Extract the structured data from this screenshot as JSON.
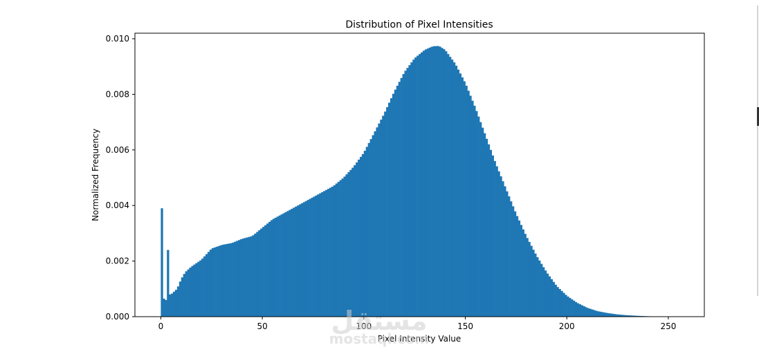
{
  "chart_data": {
    "type": "bar",
    "title": "Distribution of Pixel Intensities",
    "xlabel": "Pixel Intensity Value",
    "ylabel": "Normalized Frequency",
    "xlim": [
      -12.75,
      267.75
    ],
    "ylim": [
      0,
      0.0102
    ],
    "xticks": [
      0,
      50,
      100,
      150,
      200,
      250
    ],
    "xtick_labels": [
      "0",
      "50",
      "100",
      "150",
      "200",
      "250"
    ],
    "yticks": [
      0,
      0.002,
      0.004,
      0.006,
      0.008,
      0.01
    ],
    "ytick_labels": [
      "0.000",
      "0.002",
      "0.004",
      "0.006",
      "0.008",
      "0.010"
    ],
    "bar_color": "#1f77b4",
    "bins": 255,
    "bin_start": 0,
    "bin_width": 1,
    "profile_points": [
      [
        5,
        0.0008
      ],
      [
        8,
        0.001
      ],
      [
        10,
        0.00135
      ],
      [
        12,
        0.0016
      ],
      [
        15,
        0.0018
      ],
      [
        20,
        0.00205
      ],
      [
        25,
        0.00245
      ],
      [
        30,
        0.00258
      ],
      [
        35,
        0.00265
      ],
      [
        40,
        0.0028
      ],
      [
        45,
        0.0029
      ],
      [
        50,
        0.0032
      ],
      [
        55,
        0.0035
      ],
      [
        60,
        0.0037
      ],
      [
        65,
        0.0039
      ],
      [
        70,
        0.0041
      ],
      [
        75,
        0.0043
      ],
      [
        80,
        0.0045
      ],
      [
        85,
        0.0047
      ],
      [
        90,
        0.005
      ],
      [
        95,
        0.0054
      ],
      [
        100,
        0.0059
      ],
      [
        105,
        0.0066
      ],
      [
        110,
        0.0073
      ],
      [
        115,
        0.0081
      ],
      [
        120,
        0.0088
      ],
      [
        125,
        0.0093
      ],
      [
        130,
        0.0096
      ],
      [
        134,
        0.00973
      ],
      [
        137,
        0.00974
      ],
      [
        140,
        0.0096
      ],
      [
        145,
        0.0091
      ],
      [
        150,
        0.0084
      ],
      [
        155,
        0.0075
      ],
      [
        160,
        0.0065
      ],
      [
        165,
        0.0055
      ],
      [
        170,
        0.0046
      ],
      [
        175,
        0.0037
      ],
      [
        180,
        0.0029
      ],
      [
        185,
        0.0022
      ],
      [
        190,
        0.0016
      ],
      [
        195,
        0.0011
      ],
      [
        200,
        0.00075
      ],
      [
        205,
        0.0005
      ],
      [
        210,
        0.00032
      ],
      [
        215,
        0.0002
      ],
      [
        220,
        0.00013
      ],
      [
        225,
        8e-05
      ],
      [
        230,
        5e-05
      ],
      [
        235,
        3e-05
      ],
      [
        240,
        1.5e-05
      ],
      [
        245,
        8e-06
      ],
      [
        250,
        4e-06
      ],
      [
        254,
        2e-06
      ]
    ],
    "explicit_bins": {
      "0": 0.0039,
      "1": 0.00065,
      "2": 0.0006,
      "3": 0.0024,
      "4": 0.0008
    }
  },
  "watermark": {
    "arabic": "مستقل",
    "latin": "mostaql.com"
  }
}
